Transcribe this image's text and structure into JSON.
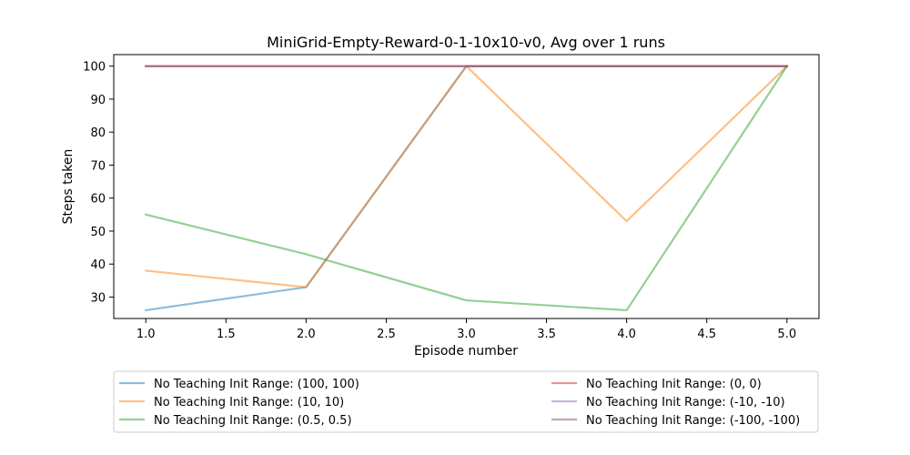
{
  "chart_data": {
    "type": "line",
    "title": "MiniGrid-Empty-Reward-0-1-10x10-v0, Avg over 1 runs",
    "xlabel": "Episode number",
    "ylabel": "Steps taken",
    "xlim": [
      0.8,
      5.2
    ],
    "ylim": [
      23.5,
      103.5
    ],
    "xticks": [
      "1.0",
      "1.5",
      "2.0",
      "2.5",
      "3.0",
      "3.5",
      "4.0",
      "4.5",
      "5.0"
    ],
    "yticks": [
      "30",
      "40",
      "50",
      "60",
      "70",
      "80",
      "90",
      "100"
    ],
    "x": [
      1,
      2,
      3,
      4,
      5
    ],
    "grid": false,
    "legend_position": "below-plot",
    "series": [
      {
        "name": "No Teaching Init Range: (100, 100)",
        "color": "#1f77b4",
        "values": [
          26,
          33,
          100,
          100,
          100
        ]
      },
      {
        "name": "No Teaching Init Range: (10, 10)",
        "color": "#ff7f0e",
        "values": [
          38,
          33,
          100,
          53,
          100
        ]
      },
      {
        "name": "No Teaching Init Range: (0.5, 0.5)",
        "color": "#2ca02c",
        "values": [
          55,
          43,
          29,
          26,
          100
        ]
      },
      {
        "name": "No Teaching Init Range: (0, 0)",
        "color": "#d62728",
        "values": [
          100,
          100,
          100,
          100,
          100
        ]
      },
      {
        "name": "No Teaching Init Range: (-10, -10)",
        "color": "#9467bd",
        "values": [
          100,
          100,
          100,
          100,
          100
        ]
      },
      {
        "name": "No Teaching Init Range: (-100, -100)",
        "color": "#8c564b",
        "values": [
          100,
          100,
          100,
          100,
          100
        ]
      }
    ]
  }
}
